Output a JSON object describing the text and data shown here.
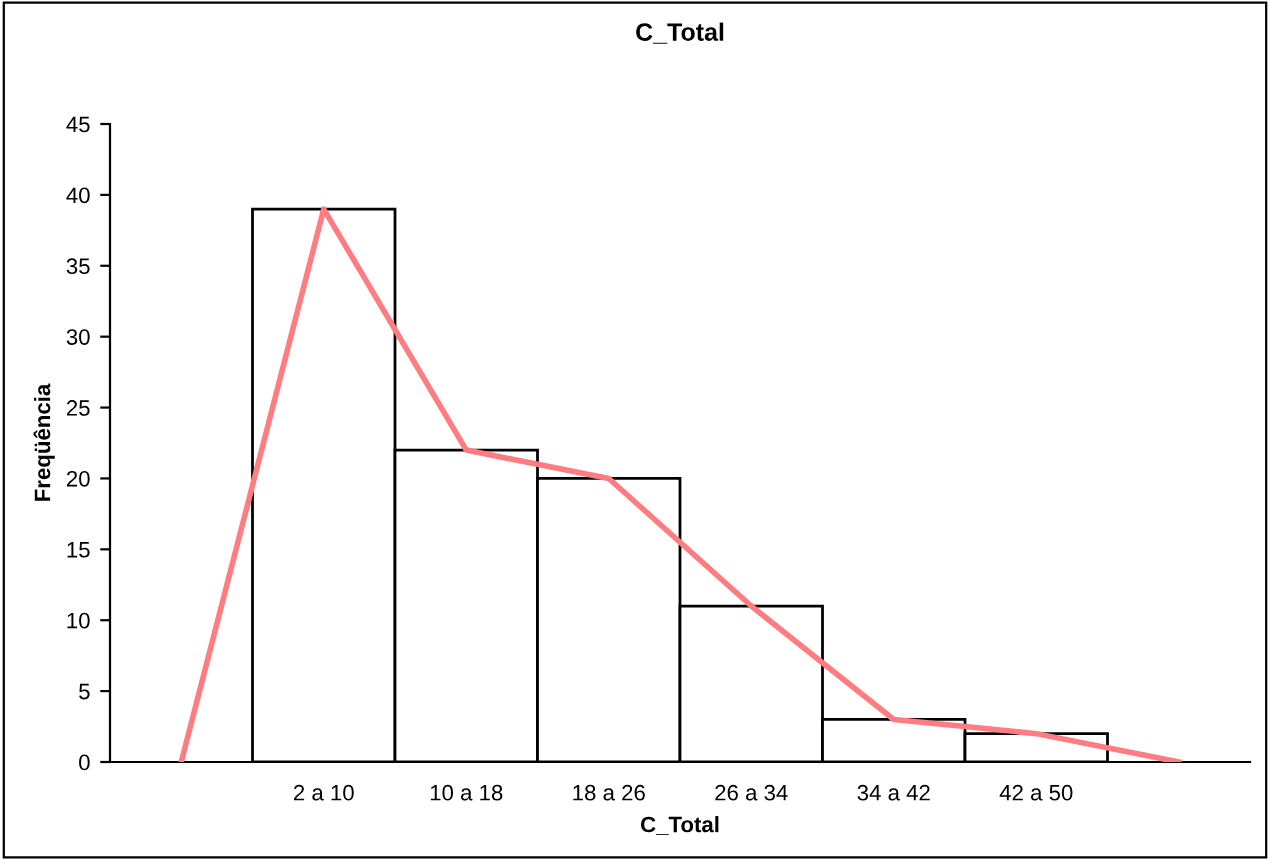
{
  "chart_data": {
    "type": "bar",
    "title": "C_Total",
    "xlabel": "C_Total",
    "ylabel": "Freqüência",
    "categories": [
      null,
      "2 a 10",
      "10 a 18",
      "18 a 26",
      "26 a 34",
      "34 a 42",
      "42 a 50",
      null
    ],
    "series": [
      {
        "color": "#ffffff",
        "values": [
          null,
          39,
          22,
          20,
          11,
          3,
          2,
          null
        ]
      },
      {
        "type": "line",
        "color": "#ff7c80",
        "values": [
          0,
          39,
          22,
          20,
          11,
          3,
          2,
          0
        ]
      }
    ],
    "ylim": [
      0,
      45
    ],
    "yticks": [
      0,
      5,
      10,
      15,
      20,
      25,
      30,
      35,
      40,
      45
    ],
    "grid": false,
    "legend": false,
    "marker": "none",
    "line_style": "solid"
  }
}
